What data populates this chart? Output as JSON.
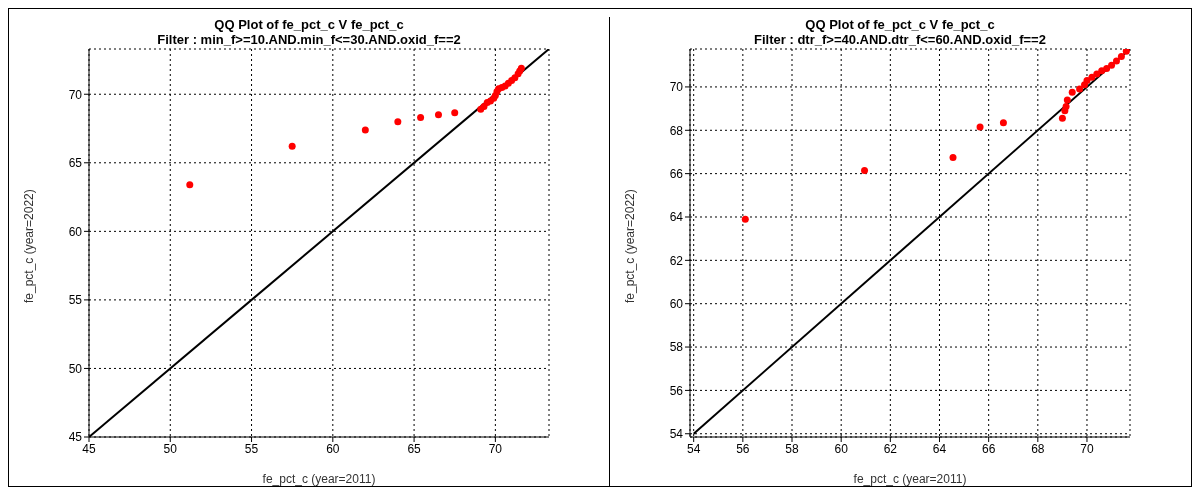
{
  "chart_data": [
    {
      "type": "scatter",
      "title": "QQ Plot of fe_pct_c V fe_pct_c",
      "subtitle": "Filter : min_f>=10.AND.min_f<=30.AND.oxid_f==2",
      "xlabel": "fe_pct_c (year=2011)",
      "ylabel": "fe_pct_c (year=2022)",
      "xlim": [
        45,
        73.3
      ],
      "ylim": [
        45,
        73.3
      ],
      "xticks": [
        45,
        50,
        55,
        60,
        65,
        70
      ],
      "yticks": [
        45,
        50,
        55,
        60,
        65,
        70
      ],
      "grid": true,
      "legend": false,
      "series": [
        {
          "color": "#ff0000",
          "marker": "circle",
          "x": [
            51.2,
            57.5,
            62,
            64,
            65.4,
            66.5,
            67.5,
            69.1,
            69.3,
            69.5,
            69.7,
            69.9,
            70,
            70.1,
            70.2,
            70.4,
            70.6,
            70.8,
            71,
            71.2,
            71.4,
            71.5,
            71.6
          ],
          "values": [
            63.4,
            66.2,
            67.4,
            68,
            68.3,
            68.5,
            68.65,
            68.9,
            69.1,
            69.4,
            69.5,
            69.7,
            69.9,
            70.2,
            70.4,
            70.5,
            70.6,
            70.8,
            71,
            71.2,
            71.5,
            71.7,
            71.9
          ]
        },
        {
          "type": "line",
          "color": "#000000",
          "marker": "none",
          "x": [
            45,
            73.3
          ],
          "values": [
            45,
            73.3
          ],
          "line_style": "solid"
        }
      ]
    },
    {
      "type": "scatter",
      "title": "QQ Plot of fe_pct_c V fe_pct_c",
      "subtitle": "Filter : dtr_f>=40.AND.dtr_f<=60.AND.oxid_f==2",
      "xlabel": "fe_pct_c (year=2011)",
      "ylabel": "fe_pct_c (year=2022)",
      "xlim": [
        53.85,
        71.75
      ],
      "ylim": [
        53.85,
        71.75
      ],
      "xticks": [
        54,
        56,
        58,
        60,
        62,
        64,
        66,
        68,
        70
      ],
      "yticks": [
        54,
        56,
        58,
        60,
        62,
        64,
        66,
        68,
        70
      ],
      "grid": true,
      "legend": false,
      "series": [
        {
          "color": "#ff0000",
          "marker": "circle",
          "x": [
            56.1,
            60.95,
            64.55,
            65.65,
            66.6,
            69,
            69.1,
            69.15,
            69.2,
            69.4,
            69.7,
            69.9,
            70,
            70.2,
            70.4,
            70.6,
            70.8,
            71,
            71.2,
            71.4,
            71.6
          ],
          "values": [
            63.9,
            66.15,
            66.75,
            68.15,
            68.35,
            68.55,
            68.9,
            69.1,
            69.4,
            69.75,
            69.9,
            70.1,
            70.3,
            70.45,
            70.6,
            70.75,
            70.85,
            71,
            71.2,
            71.4,
            71.65
          ]
        },
        {
          "type": "line",
          "color": "#000000",
          "marker": "none",
          "x": [
            54,
            71.75
          ],
          "values": [
            54,
            71.75
          ],
          "line_style": "solid"
        }
      ]
    }
  ]
}
